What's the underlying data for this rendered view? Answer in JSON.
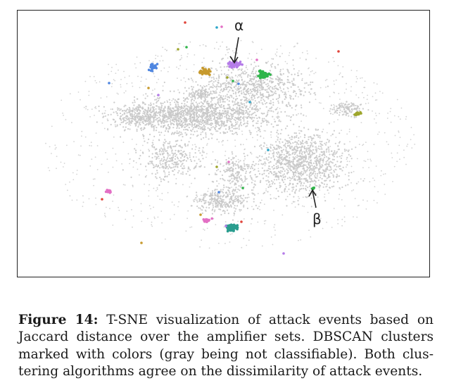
{
  "figure": {
    "annotations": [
      {
        "label": "α",
        "cluster": "alpha"
      },
      {
        "label": "β",
        "cluster": "beta"
      }
    ],
    "legend_note": "DBSCAN clusters marked with colors (gray being not classifiable)",
    "colors": {
      "unclassified": "#c8c8c8",
      "purple": "#b57ce8",
      "orange": "#c79a2e",
      "green": "#2fb54a",
      "teal": "#2a9d8f",
      "blue": "#4f86e0",
      "pink": "#e36fc4",
      "olive": "#9ea62c",
      "red": "#e0443a",
      "cyan": "#2aa6c9"
    }
  },
  "caption": {
    "label": "Figure 14:",
    "text": " T-SNE visualization of attack events based on Jaccard distance over the amplifier sets. DBSCAN clusters marked with colors (gray being not classifiable). Both clus­tering algorithms agree on the dissimilarity of attack events."
  }
}
